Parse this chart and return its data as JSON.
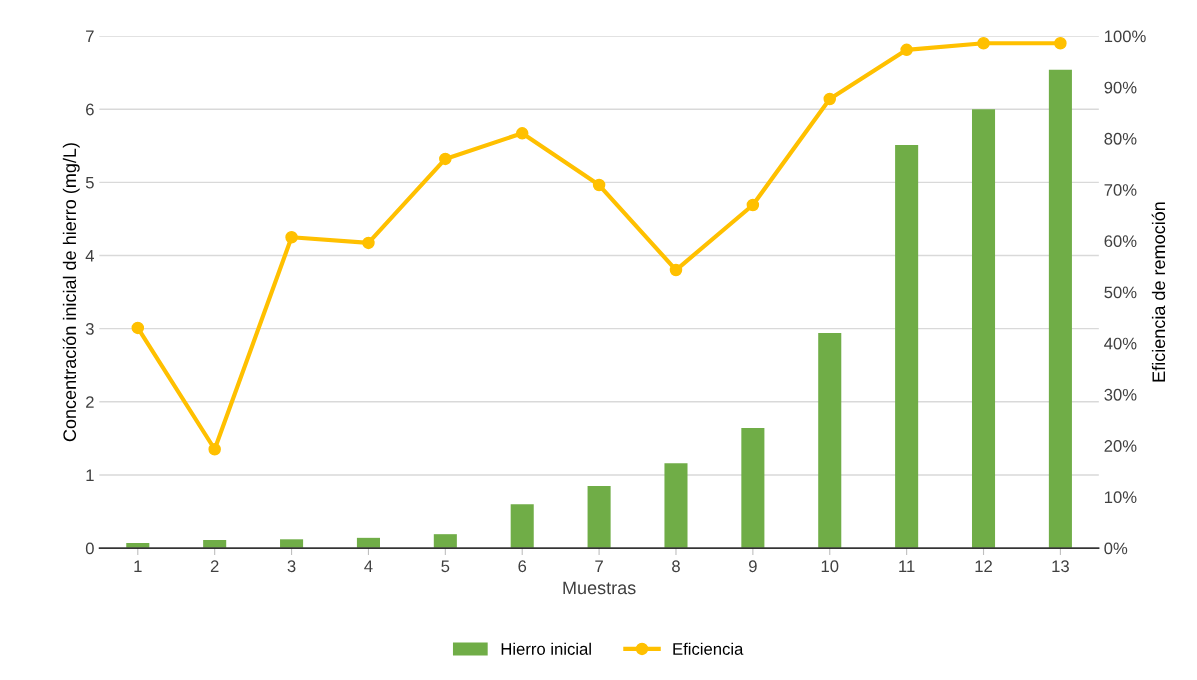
{
  "chart_data": {
    "type": "bar",
    "xlabel": "Muestras",
    "ylabel": "Concentración inicial de hierro (mg/L)",
    "y2label": "Eficiencia de remoción",
    "categories": [
      "1",
      "2",
      "3",
      "4",
      "5",
      "6",
      "7",
      "8",
      "9",
      "10",
      "11",
      "12",
      "13"
    ],
    "series": [
      {
        "name": "Hierro inicial",
        "color": "#70ad47",
        "values": [
          0.07,
          0.11,
          0.12,
          0.14,
          0.19,
          0.6,
          0.85,
          1.16,
          1.64,
          2.94,
          5.51,
          6.0,
          6.54
        ]
      },
      {
        "name": "Eficiencia",
        "type": "line",
        "axis": "y2",
        "color": "#ffc000",
        "marker": "circle",
        "values": [
          43,
          19.3,
          60.7,
          59.6,
          76,
          81,
          70.9,
          54.3,
          67,
          87.7,
          97.3,
          98.6,
          98.6
        ]
      }
    ],
    "ylim": [
      0,
      7
    ],
    "yticks": [
      0,
      1,
      2,
      3,
      4,
      5,
      6,
      7
    ],
    "y2lim": [
      0,
      100
    ],
    "y2ticks": [
      {
        "value": 0,
        "label": "0%"
      },
      {
        "value": 10,
        "label": "10%"
      },
      {
        "value": 20,
        "label": "20%"
      },
      {
        "value": 30,
        "label": "30%"
      },
      {
        "value": 40,
        "label": "40%"
      },
      {
        "value": 50,
        "label": "50%"
      },
      {
        "value": 60,
        "label": "60%"
      },
      {
        "value": 70,
        "label": "70%"
      },
      {
        "value": 80,
        "label": "80%"
      },
      {
        "value": 90,
        "label": "90%"
      },
      {
        "value": 100,
        "label": "100%"
      }
    ],
    "grid": "y",
    "legend": "bottom"
  }
}
